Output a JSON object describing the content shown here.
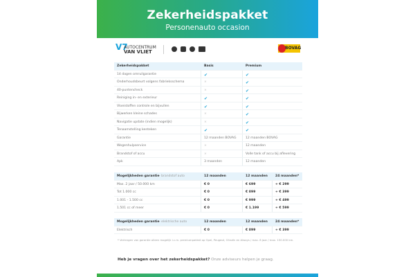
{
  "header": {
    "title": "Zekerheidspakket",
    "subtitle": "Personenauto occasion"
  },
  "logos": {
    "dealer_line1": "AUTOCENTRUM",
    "dealer_line2": "VAN VLIET",
    "brands": [
      "Opel",
      "Peugeot",
      "Citroën",
      "DS"
    ],
    "bovag": "BOVAG"
  },
  "package_table": {
    "headers": [
      "Zekerheidspakket",
      "Basis",
      "Premium"
    ],
    "rows": [
      [
        "14 dagen omruilgarantie",
        "check",
        "check"
      ],
      [
        "Onderhoudsbeurt volgens fabrieksschema",
        "cross",
        "check"
      ],
      [
        "40-puntencheck",
        "cross",
        "check"
      ],
      [
        "Reiniging in- en exterieur",
        "check",
        "check"
      ],
      [
        "Vloeistoffen controle en bijvullen",
        "check",
        "check"
      ],
      [
        "Bijwerken kleine schades",
        "cross",
        "check"
      ],
      [
        "Navigatie update (indien mogelijk)",
        "cross",
        "check"
      ],
      [
        "Tenaamstelling kenteken",
        "check",
        "check"
      ],
      [
        "Garantie",
        "12 maanden BOVAG",
        "12 maanden BOVAG"
      ],
      [
        "Wegenhulpservice",
        "cross",
        "12 maanden"
      ],
      [
        "Brandstof of accu",
        "cross",
        "Volle tank of accu bij aflevering"
      ],
      [
        "Apk",
        "3 maanden",
        "12 maanden"
      ]
    ]
  },
  "fuel_table": {
    "title": "Mogelijkheden garantie",
    "subtitle": " - brandstof auto",
    "headers": [
      "12 maanden",
      "12 maanden",
      "24 maanden*"
    ],
    "rows": [
      [
        "Max. 2 jaar / 50.000 km",
        "€ 0",
        "€ 699",
        "+ € 299"
      ],
      [
        "Tot 1.000 cc",
        "€ 0",
        "€ 899",
        "+ € 399"
      ],
      [
        "1.001 - 1.500 cc",
        "€ 0",
        "€ 999",
        "+ € 499"
      ],
      [
        "1.501 cc of meer",
        "€ 0",
        "€ 1.199",
        "+ € 599"
      ]
    ]
  },
  "ev_table": {
    "title": "Mogelijkheden garantie",
    "subtitle": " - elektrische auto",
    "headers": [
      "12 maanden",
      "12 maanden",
      "24 maanden*"
    ],
    "rows": [
      [
        "Elektrisch",
        "€ 0",
        "€ 899",
        "+ € 399"
      ]
    ]
  },
  "footnote": "* Verlengen van garantie alleen mogelijk i.c.m. premiumpakket op Opel, Peugeot, Citroën en Always / max. 8 jaar / max. 150.000 km.",
  "question": {
    "bold": "Heb je vragen over het zekerheidspakket?",
    "rest": " Onze adviseurs helpen je graag."
  },
  "symbols": {
    "check": "✔",
    "cross": "×"
  },
  "colors": {
    "accent_green": "#3cb14a",
    "accent_blue": "#1aa3dc",
    "header_row": "#e6f3fb"
  }
}
